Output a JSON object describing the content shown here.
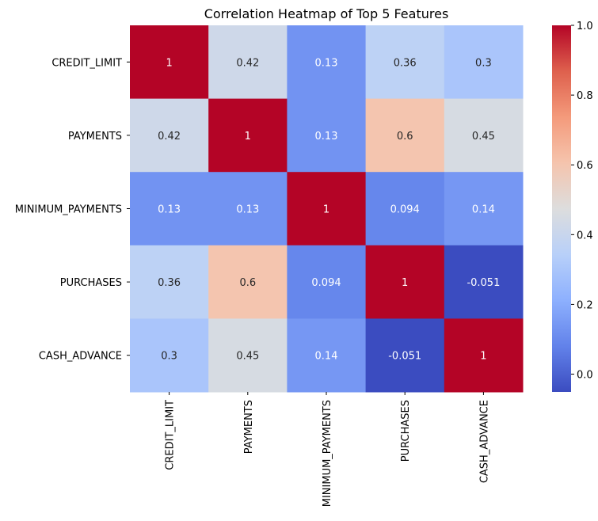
{
  "chart_data": {
    "type": "heatmap",
    "title": "Correlation Heatmap of Top 5 Features",
    "row_labels": [
      "CREDIT_LIMIT",
      "PAYMENTS",
      "MINIMUM_PAYMENTS",
      "PURCHASES",
      "CASH_ADVANCE"
    ],
    "col_labels": [
      "CREDIT_LIMIT",
      "PAYMENTS",
      "MINIMUM_PAYMENTS",
      "PURCHASES",
      "CASH_ADVANCE"
    ],
    "values": [
      [
        1,
        0.42,
        0.13,
        0.36,
        0.3
      ],
      [
        0.42,
        1,
        0.13,
        0.6,
        0.45
      ],
      [
        0.13,
        0.13,
        1,
        0.094,
        0.14
      ],
      [
        0.36,
        0.6,
        0.094,
        1,
        -0.051
      ],
      [
        0.3,
        0.45,
        0.14,
        -0.051,
        1
      ]
    ],
    "value_labels": [
      [
        "1",
        "0.42",
        "0.13",
        "0.36",
        "0.3"
      ],
      [
        "0.42",
        "1",
        "0.13",
        "0.6",
        "0.45"
      ],
      [
        "0.13",
        "0.13",
        "1",
        "0.094",
        "0.14"
      ],
      [
        "0.36",
        "0.6",
        "0.094",
        "1",
        "-0.051"
      ],
      [
        "0.3",
        "0.45",
        "0.14",
        "-0.051",
        "1"
      ]
    ],
    "colormap": "coolwarm",
    "color_range": [
      -0.051,
      1.0
    ],
    "colorbar_ticks": [
      0.0,
      0.2,
      0.4,
      0.6,
      0.8,
      1.0
    ],
    "colorbar_tick_labels": [
      "0.0",
      "0.2",
      "0.4",
      "0.6",
      "0.8",
      "1.0"
    ]
  }
}
